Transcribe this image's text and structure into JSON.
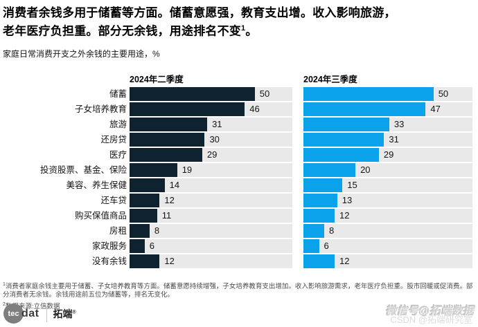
{
  "page": {
    "title_line1": "消费者余钱多用于储蓄等方面。储蓄意愿强，教育支出增。收入影响旅游，",
    "title_line2": "老年医疗负担重。部分无余钱，用途排名不变",
    "title_sup": "1",
    "title_end": "。",
    "subtitle": "家庭日常消费开支之外余钱的主要用途，%"
  },
  "chart_data": {
    "type": "bar",
    "orientation": "horizontal",
    "title": "家庭日常消费开支之外余钱的主要用途",
    "unit": "%",
    "axis_max": 65,
    "track_color": "#e9e9e9",
    "categories": [
      "储蓄",
      "子女培养教育",
      "旅游",
      "还房贷",
      "医疗",
      "投资股票、基金、保险",
      "美容、养生保健",
      "还车贷",
      "购买保值商品",
      "房租",
      "家政服务",
      "没有余钱"
    ],
    "series": [
      {
        "name": "2024年二季度",
        "color": "#0e2230",
        "values": [
          50,
          46,
          31,
          30,
          29,
          19,
          14,
          12,
          11,
          8,
          6,
          12
        ]
      },
      {
        "name": "2024年三季度",
        "color": "#0aa2ea",
        "values": [
          50,
          47,
          33,
          31,
          29,
          20,
          15,
          13,
          12,
          8,
          6,
          12
        ]
      }
    ]
  },
  "footnotes": [
    {
      "sup": "1",
      "text": "消费者家庭余钱主要用于储蓄、子女培养教育等方面。储蓄意愿持续增强，子女培养教育支出增加。收入影响旅游需求，老年医疗负担重。股市回暖或促消费。部分消费者无余钱。余钱用途前五位为储蓄等，排名无变化。"
    },
    {
      "sup": "2",
      "text": "数据来源:立信数据"
    }
  ],
  "logo": {
    "circle": "tec",
    "suffix": "dat",
    "cn": "拓端",
    "reg": "®"
  },
  "watermark": {
    "line1": "微信号@拓端数据",
    "line2": "CSDN @拓端研究室"
  }
}
